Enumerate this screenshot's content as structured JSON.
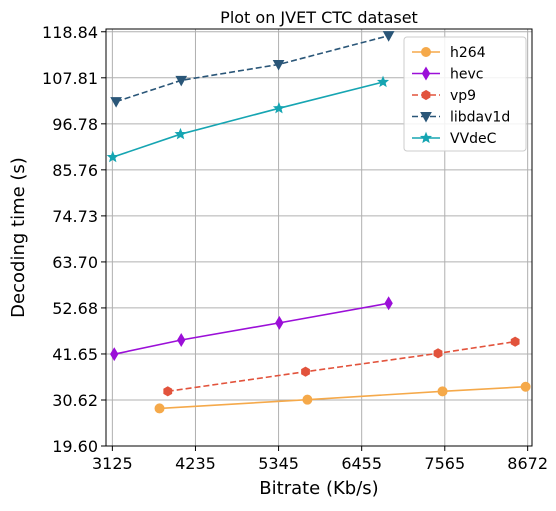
{
  "chart_data": {
    "type": "line",
    "title": "Plot on JVET CTC dataset",
    "xlabel": "Bitrate (Kb/s)",
    "ylabel": "Decoding time (s)",
    "xlim": [
      3040,
      8730
    ],
    "ylim": [
      19.6,
      119.5
    ],
    "xticks": [
      3125,
      4235,
      5345,
      6455,
      7565,
      8672
    ],
    "xtick_labels": [
      "3125",
      "4235",
      "5345",
      "6455",
      "7565",
      "8672"
    ],
    "yticks": [
      19.6,
      30.62,
      41.65,
      52.68,
      63.7,
      74.73,
      85.76,
      96.78,
      107.81,
      118.84
    ],
    "ytick_labels": [
      "19.60",
      "30.62",
      "41.65",
      "52.68",
      "63.70",
      "74.73",
      "85.76",
      "96.78",
      "107.81",
      "118.84"
    ],
    "grid": true,
    "legend_position": "top-right",
    "series": [
      {
        "name": "h264",
        "color": "#f5a94a",
        "line_style": "solid",
        "marker": "circle",
        "x": [
          3755,
          5730,
          7535,
          8645
        ],
        "y": [
          28.6,
          30.7,
          32.7,
          33.8
        ]
      },
      {
        "name": "hevc",
        "color": "#9b0fd8",
        "line_style": "solid",
        "marker": "thin-diamond",
        "x": [
          3150,
          4045,
          5355,
          6815
        ],
        "y": [
          41.6,
          45.0,
          49.1,
          53.8
        ]
      },
      {
        "name": "vp9",
        "color": "#e2533c",
        "line_style": "dashed",
        "marker": "hexagon",
        "x": [
          3865,
          5705,
          7475,
          8505
        ],
        "y": [
          32.7,
          37.4,
          41.8,
          44.6
        ]
      },
      {
        "name": "libdav1d",
        "color": "#2a5678",
        "line_style": "dashed",
        "marker": "triangle-down",
        "x": [
          3175,
          4045,
          5345,
          6815
        ],
        "y": [
          102.1,
          107.2,
          111.0,
          117.9
        ]
      },
      {
        "name": "VVdeC",
        "color": "#16a5b2",
        "line_style": "solid",
        "marker": "star",
        "x": [
          3130,
          4035,
          5350,
          6740
        ],
        "y": [
          88.8,
          94.3,
          100.5,
          106.8
        ]
      }
    ]
  }
}
